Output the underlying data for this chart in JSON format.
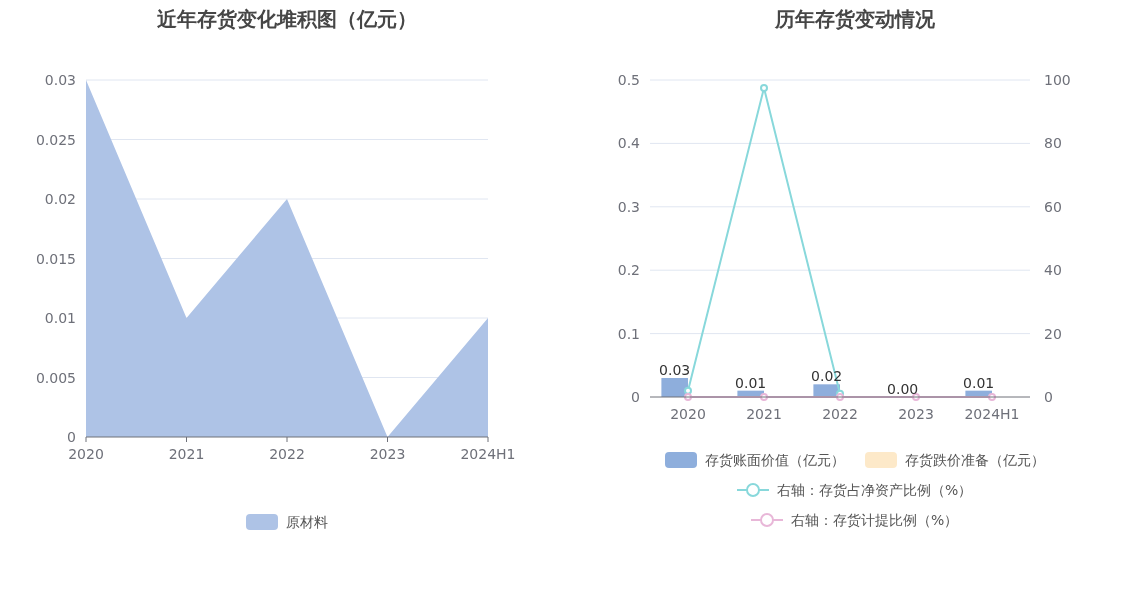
{
  "chart_data": [
    {
      "type": "area",
      "title": "近年存货变化堆积图（亿元）",
      "categories": [
        "2020",
        "2021",
        "2022",
        "2023",
        "2024H1"
      ],
      "series": [
        {
          "name": "原材料",
          "color": "#aec3e6",
          "values": [
            0.03,
            0.01,
            0.02,
            0,
            0.01
          ]
        }
      ],
      "ylim": [
        0,
        0.03
      ],
      "yticks": [
        0,
        0.005,
        0.01,
        0.015,
        0.02,
        0.025,
        0.03
      ],
      "grid": "y",
      "legend": "bottom"
    },
    {
      "type": "bar",
      "title": "历年存货变动情况",
      "categories": [
        "2020",
        "2021",
        "2022",
        "2023",
        "2024H1"
      ],
      "series": [
        {
          "name": "存货账面价值（亿元）",
          "color": "#8eaedc",
          "values": [
            0.03,
            0.01,
            0.02,
            0.0,
            0.01
          ],
          "value_labels": [
            "0.03",
            "0.01",
            "0.02",
            "0.00",
            "0.01"
          ]
        },
        {
          "name": "存货跌价准备（亿元）",
          "color": "#fde9c9",
          "values": [
            null,
            null,
            null,
            null,
            null
          ]
        },
        {
          "name": "右轴：存货占净资产比例（%）",
          "type": "line",
          "axis": "y2",
          "color": "#88d8db",
          "marker": "circle",
          "values": [
            2,
            97.5,
            1,
            null,
            null
          ]
        },
        {
          "name": "右轴：存货计提比例（%）",
          "type": "line",
          "axis": "y2",
          "color": "#e8b7d8",
          "marker": "circle",
          "values": [
            0,
            0,
            0,
            0,
            0
          ]
        }
      ],
      "ylim": [
        0,
        0.5
      ],
      "yticks": [
        0,
        0.1,
        0.2,
        0.3,
        0.4,
        0.5
      ],
      "y2lim": [
        0,
        100
      ],
      "y2ticks": [
        0,
        20,
        40,
        60,
        80,
        100
      ],
      "grid": "y",
      "legend": "bottom"
    }
  ]
}
